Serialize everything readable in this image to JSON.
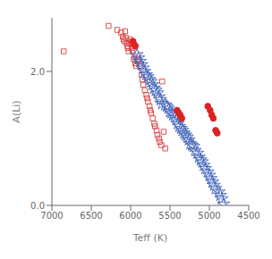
{
  "chart_data": {
    "type": "scatter",
    "xlabel": "Teff (K)",
    "ylabel": "A(Li)",
    "xlim": [
      7000,
      4500
    ],
    "ylim": [
      0.0,
      2.8
    ],
    "xticks": [
      7000,
      6500,
      6000,
      5500,
      5000,
      4500
    ],
    "yticks": [
      {
        "value": 0.0,
        "label": "0.0"
      },
      {
        "value": 2.0,
        "label": "2.0"
      }
    ],
    "grid": false,
    "series": [
      {
        "color": "#d94040",
        "marker": "open_square",
        "x": [
          6850,
          6280,
          6170,
          6120,
          6100,
          6090,
          6080,
          6070,
          6060,
          6050,
          6040,
          6035,
          6025,
          6015,
          6005,
          5995,
          5990,
          5985,
          5975,
          5960,
          5950,
          5940,
          5930,
          5910,
          5900,
          5880,
          5860,
          5850,
          5840,
          5820,
          5800,
          5790,
          5780,
          5760,
          5750,
          5740,
          5720,
          5700,
          5690,
          5670,
          5660,
          5640,
          5630,
          5610,
          5600,
          5580,
          5560
        ],
        "y": [
          2.3,
          2.68,
          2.62,
          2.58,
          2.52,
          2.48,
          2.45,
          2.6,
          2.5,
          2.42,
          2.38,
          2.35,
          2.3,
          2.42,
          2.48,
          2.45,
          2.4,
          2.35,
          2.3,
          2.18,
          2.22,
          2.12,
          2.08,
          2.15,
          2.18,
          2.08,
          1.95,
          1.88,
          1.8,
          1.72,
          1.65,
          1.6,
          1.55,
          1.48,
          1.42,
          1.38,
          1.3,
          1.22,
          1.18,
          1.12,
          1.05,
          1.0,
          0.95,
          0.9,
          1.85,
          1.1,
          0.85
        ]
      },
      {
        "color": "#4466bb",
        "marker": "open_star",
        "x": [
          5920,
          5900,
          5880,
          5860,
          5840,
          5820,
          5800,
          5780,
          5760,
          5740,
          5720,
          5700,
          5680,
          5660,
          5640,
          5620,
          5600,
          5560,
          5540,
          5520,
          5500,
          5480,
          5460,
          5440,
          5420,
          5400,
          5380,
          5360,
          5340,
          5320,
          5300,
          5280,
          5260,
          5240,
          5220,
          5200,
          5180,
          5150,
          5130,
          5110,
          5090,
          5070,
          5050,
          5020,
          5000,
          4980,
          4960,
          4940,
          4920,
          4880,
          4860,
          4840,
          4820
        ],
        "y": [
          2.25,
          2.2,
          2.15,
          2.1,
          2.05,
          2.0,
          1.95,
          1.92,
          1.88,
          1.85,
          1.8,
          1.75,
          1.72,
          1.68,
          1.62,
          1.58,
          1.52,
          1.5,
          1.48,
          1.45,
          1.4,
          1.38,
          1.35,
          1.32,
          1.28,
          1.22,
          1.18,
          1.15,
          1.12,
          1.08,
          1.05,
          1.02,
          0.98,
          0.92,
          0.9,
          0.88,
          0.82,
          0.78,
          0.72,
          0.68,
          0.65,
          0.6,
          0.55,
          0.5,
          0.45,
          0.4,
          0.35,
          0.3,
          0.25,
          0.2,
          0.15,
          0.1,
          0.02
        ]
      },
      {
        "color": "#dd2222",
        "marker": "circle",
        "x": [
          5970,
          5955,
          5940,
          5410,
          5390,
          5370,
          5350,
          5020,
          4990,
          4970,
          4950,
          4920,
          4900
        ],
        "y": [
          2.45,
          2.4,
          2.38,
          1.42,
          1.38,
          1.35,
          1.3,
          1.48,
          1.42,
          1.35,
          1.3,
          1.12,
          1.08
        ]
      }
    ]
  }
}
